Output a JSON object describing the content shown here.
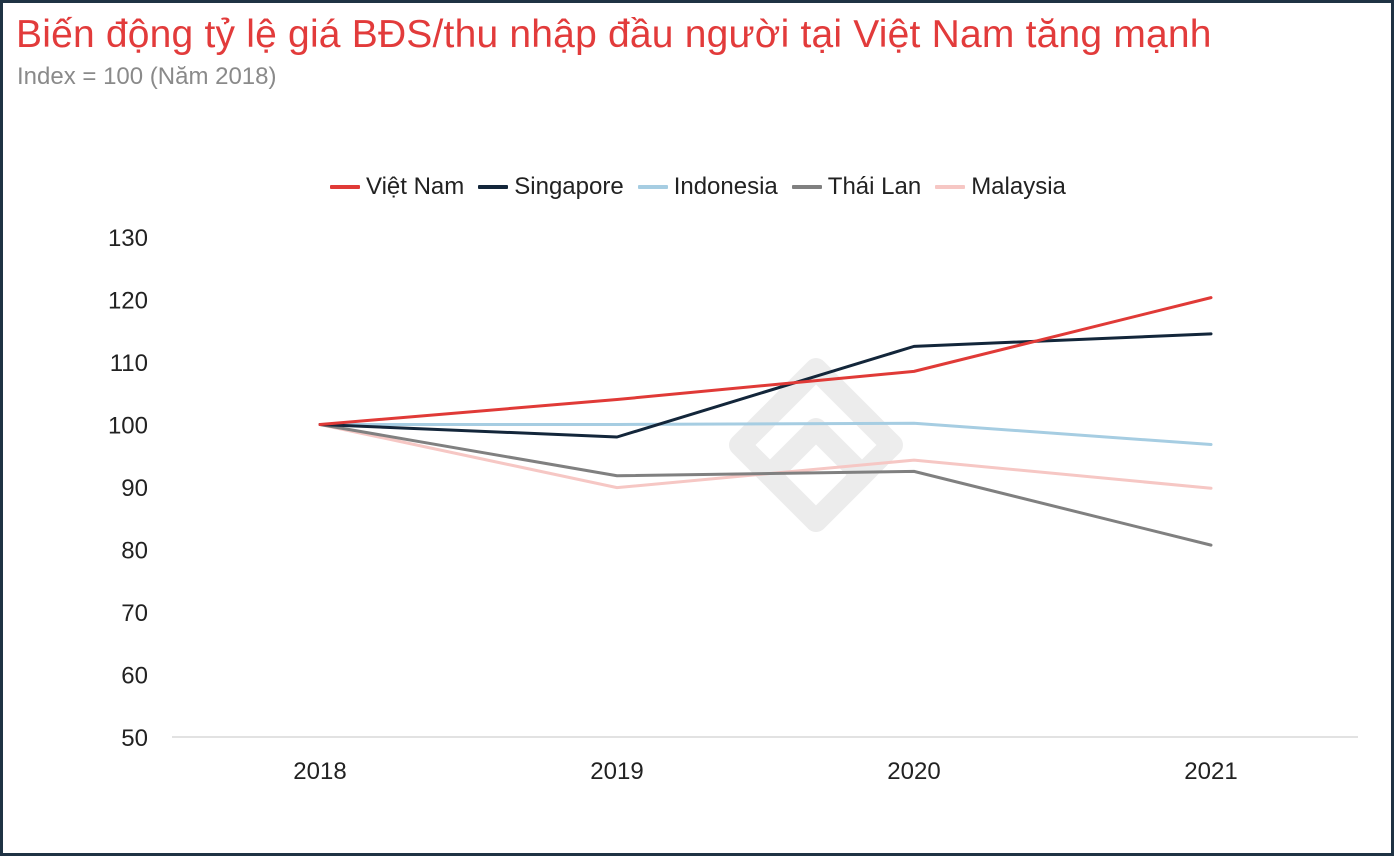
{
  "title": "Biến động tỷ lệ giá BĐS/thu nhập đầu người tại Việt Nam tăng mạnh",
  "subtitle": "Index = 100 (Năm 2018)",
  "colors": {
    "title": "#e23b3b",
    "frame": "#1f3344"
  },
  "chart_data": {
    "type": "line",
    "x": [
      "2018",
      "2019",
      "2020",
      "2021"
    ],
    "ylim": [
      50,
      130
    ],
    "yticks": [
      50,
      60,
      70,
      80,
      90,
      100,
      110,
      120,
      130
    ],
    "grid": false,
    "legend": "top",
    "series": [
      {
        "name": "Việt Nam",
        "color": "#e03a37",
        "values": [
          100,
          104,
          108.5,
          120.3
        ]
      },
      {
        "name": "Singapore",
        "color": "#13263a",
        "values": [
          100,
          98,
          112.5,
          114.5
        ]
      },
      {
        "name": "Indonesia",
        "color": "#a6cde2",
        "values": [
          100,
          100,
          100.2,
          96.8
        ]
      },
      {
        "name": "Thái Lan",
        "color": "#808080",
        "values": [
          100,
          91.8,
          92.5,
          80.7
        ]
      },
      {
        "name": "Malaysia",
        "color": "#f6c7c4",
        "values": [
          100,
          89.9,
          94.3,
          89.8
        ]
      }
    ]
  }
}
